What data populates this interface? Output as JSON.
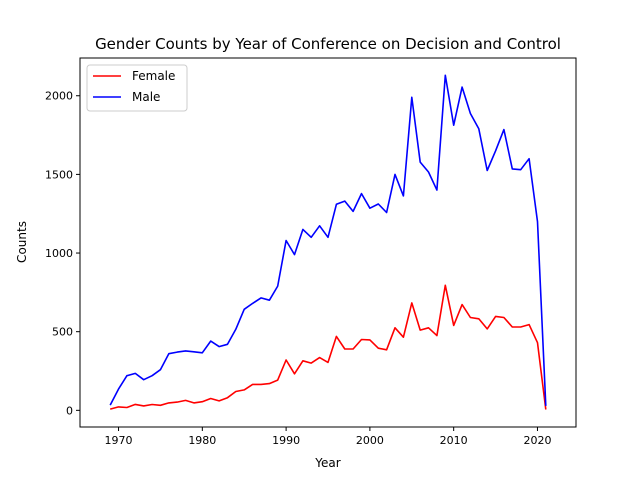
{
  "chart_data": {
    "type": "line",
    "title": "Gender Counts by Year of Conference on Decision and Control",
    "xlabel": "Year",
    "ylabel": "Counts",
    "xlim": [
      1965.4,
      2024.6
    ],
    "ylim": [
      -106,
      2240
    ],
    "xticks": [
      1970,
      1980,
      1990,
      2000,
      2010,
      2020
    ],
    "yticks": [
      0,
      500,
      1000,
      1500,
      2000
    ],
    "grid": false,
    "legend_position": "top-left",
    "x": [
      1969,
      1970,
      1971,
      1972,
      1973,
      1974,
      1975,
      1976,
      1977,
      1978,
      1979,
      1980,
      1981,
      1982,
      1983,
      1984,
      1985,
      1986,
      1987,
      1988,
      1989,
      1990,
      1991,
      1992,
      1993,
      1994,
      1995,
      1996,
      1997,
      1998,
      1999,
      2000,
      2001,
      2002,
      2003,
      2004,
      2005,
      2006,
      2007,
      2008,
      2009,
      2010,
      2011,
      2012,
      2013,
      2014,
      2015,
      2016,
      2017,
      2018,
      2019,
      2020,
      2021
    ],
    "series": [
      {
        "name": "Female",
        "color": "#ff0000",
        "values": [
          8,
          22,
          18,
          38,
          28,
          37,
          32,
          47,
          52,
          63,
          47,
          55,
          75,
          60,
          80,
          120,
          130,
          165,
          165,
          170,
          192,
          320,
          232,
          315,
          300,
          335,
          305,
          470,
          390,
          390,
          450,
          448,
          395,
          385,
          525,
          465,
          683,
          510,
          525,
          475,
          795,
          540,
          672,
          590,
          582,
          518,
          597,
          590,
          530,
          530,
          545,
          430,
          5
        ]
      },
      {
        "name": "Male",
        "color": "#0000ff",
        "values": [
          33,
          135,
          220,
          235,
          195,
          220,
          258,
          360,
          370,
          378,
          372,
          366,
          440,
          405,
          420,
          515,
          642,
          680,
          715,
          700,
          790,
          1080,
          990,
          1150,
          1100,
          1173,
          1100,
          1310,
          1330,
          1265,
          1378,
          1285,
          1312,
          1258,
          1500,
          1363,
          1990,
          1578,
          1515,
          1400,
          2130,
          1813,
          2055,
          1887,
          1790,
          1525,
          1650,
          1785,
          1535,
          1530,
          1600,
          1200,
          28
        ]
      }
    ]
  }
}
